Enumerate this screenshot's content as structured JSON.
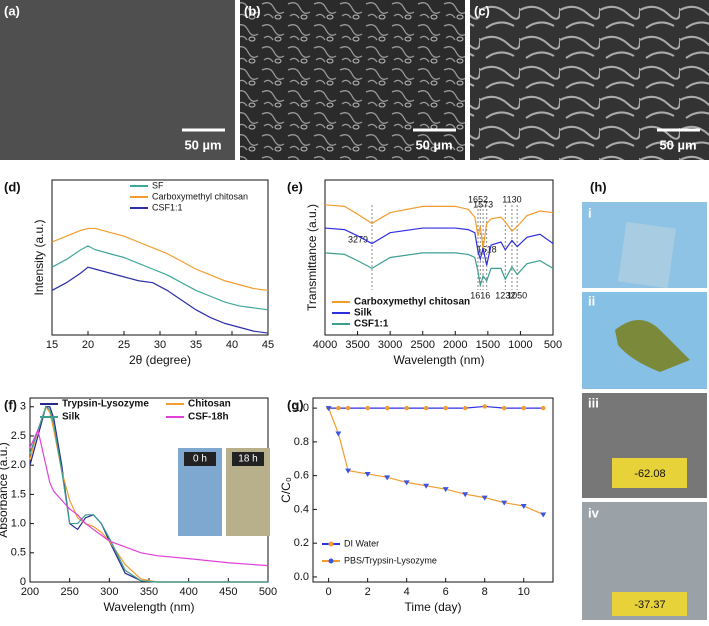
{
  "images": [
    {
      "panel": "(a)",
      "scale": "50 µm"
    },
    {
      "panel": "(b)",
      "scale": "50 µm"
    },
    {
      "panel": "(c)",
      "scale": "50 µm"
    }
  ],
  "photos": {
    "panel": "(h)",
    "items": [
      {
        "label": "i"
      },
      {
        "label": "ii"
      },
      {
        "label": "iii",
        "reading": "-62.08"
      },
      {
        "label": "iv",
        "reading": "-37.37"
      }
    ]
  },
  "chart_data": [
    {
      "type": "line",
      "panel": "(d)",
      "x_label": "2θ (degree)",
      "y_label": "Intensity (a.u.)",
      "xlim": [
        15,
        45
      ],
      "xticks": [
        15,
        20,
        25,
        30,
        35,
        40,
        45
      ],
      "ylim": [
        0,
        8
      ],
      "x": [
        15,
        17,
        19,
        20,
        21,
        23,
        25,
        27,
        29,
        31,
        33,
        35,
        37,
        39,
        41,
        43,
        45
      ],
      "series": [
        {
          "name": "SF",
          "color": "#3fa89a",
          "values": [
            3.5,
            3.9,
            4.4,
            4.6,
            4.4,
            4.2,
            4.0,
            3.7,
            3.4,
            3.1,
            2.7,
            2.3,
            2.0,
            1.7,
            1.5,
            1.4,
            1.3
          ]
        },
        {
          "name": "Carboxymethyl chitosan",
          "color": "#f39c2e",
          "values": [
            4.8,
            5.1,
            5.4,
            5.5,
            5.5,
            5.3,
            5.1,
            4.8,
            4.5,
            4.2,
            3.8,
            3.4,
            3.1,
            2.8,
            2.6,
            2.4,
            2.3
          ]
        },
        {
          "name": "CSF1:1",
          "color": "#2c2fa8",
          "values": [
            2.3,
            2.7,
            3.2,
            3.5,
            3.4,
            3.2,
            3.0,
            2.8,
            2.7,
            2.3,
            1.8,
            1.3,
            0.9,
            0.6,
            0.4,
            0.2,
            0.1
          ]
        }
      ]
    },
    {
      "type": "line",
      "panel": "(e)",
      "x_label": "Wavelength (nm)",
      "y_label": "Transmittance (a.u.)",
      "xlim": [
        4000,
        500
      ],
      "xticks": [
        4000,
        3500,
        3000,
        2500,
        2000,
        1500,
        1000,
        500
      ],
      "ylim": [
        0,
        10
      ],
      "x": [
        4000,
        3700,
        3500,
        3279,
        3000,
        2500,
        2000,
        1800,
        1700,
        1652,
        1616,
        1573,
        1518,
        1450,
        1300,
        1232,
        1130,
        1050,
        900,
        700,
        500
      ],
      "series": [
        {
          "name": "Carboxymethyl chitosan",
          "color": "#f39c2e",
          "values": [
            8.4,
            8.3,
            7.8,
            7.2,
            7.9,
            8.3,
            8.3,
            8.1,
            7.6,
            6.4,
            7.0,
            5.6,
            7.2,
            7.5,
            7.6,
            7.3,
            6.7,
            7.0,
            7.7,
            8.0,
            7.9
          ]
        },
        {
          "name": "Silk",
          "color": "#2f2fe0",
          "values": [
            6.9,
            6.8,
            6.4,
            5.9,
            6.6,
            6.9,
            6.9,
            6.8,
            6.6,
            5.4,
            4.9,
            5.6,
            4.5,
            5.8,
            6.0,
            5.5,
            6.1,
            5.7,
            6.3,
            6.5,
            5.9
          ]
        },
        {
          "name": "CSF1:1",
          "color": "#3a9f90",
          "values": [
            5.3,
            5.2,
            4.8,
            4.3,
            5.0,
            5.3,
            5.3,
            5.2,
            5.0,
            4.1,
            3.2,
            3.8,
            3.5,
            4.3,
            4.3,
            3.6,
            4.4,
            3.9,
            4.6,
            4.8,
            4.3
          ]
        }
      ],
      "annotations": [
        3279,
        1652,
        1573,
        1130,
        1518,
        1616,
        1232,
        1050
      ]
    },
    {
      "type": "line",
      "panel": "(f)",
      "x_label": "Wavelength (nm)",
      "y_label": "Absorbance (a.u.)",
      "xlim": [
        200,
        500
      ],
      "xticks": [
        200,
        250,
        300,
        350,
        400,
        450,
        500
      ],
      "ylim": [
        0,
        3.15
      ],
      "yticks": [
        0,
        0.5,
        {
          "value": 1.0,
          "label": "1.0"
        },
        1.5,
        {
          "value": 2.0,
          "label": "2.0"
        },
        2.5,
        3
      ],
      "x": [
        200,
        210,
        220,
        225,
        230,
        240,
        250,
        260,
        270,
        280,
        290,
        300,
        320,
        340,
        360,
        400,
        450,
        500
      ],
      "series": [
        {
          "name": "Trypsin-Lysozyme",
          "color": "#25288f",
          "values": [
            2.0,
            2.5,
            3.0,
            3.0,
            2.8,
            2.0,
            1.0,
            0.9,
            1.1,
            1.15,
            1.0,
            0.7,
            0.15,
            0.02,
            0,
            0,
            0,
            0
          ]
        },
        {
          "name": "Chitosan",
          "color": "#f39c2e",
          "values": [
            2.1,
            2.6,
            3.0,
            2.9,
            2.6,
            1.9,
            1.4,
            1.1,
            1.0,
            0.95,
            0.85,
            0.7,
            0.3,
            0.05,
            0,
            0,
            0,
            0
          ]
        },
        {
          "name": "Silk",
          "color": "#3a9f90",
          "values": [
            2.2,
            2.6,
            3.0,
            2.95,
            2.7,
            1.9,
            1.0,
            1.0,
            1.15,
            1.15,
            1.0,
            0.75,
            0.2,
            0.02,
            0,
            0,
            0,
            0
          ]
        },
        {
          "name": "CSF-18h",
          "color": "#e040d8",
          "values": [
            2.3,
            2.6,
            2.0,
            1.7,
            1.55,
            1.4,
            1.25,
            1.15,
            1.0,
            0.9,
            0.8,
            0.7,
            0.6,
            0.5,
            0.45,
            0.4,
            0.33,
            0.28
          ]
        }
      ],
      "inset_labels": [
        "0 h",
        "18 h"
      ]
    },
    {
      "type": "line",
      "panel": "(g)",
      "x_label": "Time (day)",
      "y_label": "C/C₀",
      "xlim": [
        -0.8,
        11.5
      ],
      "xticks": [
        0,
        2,
        4,
        6,
        8,
        10
      ],
      "ylim": [
        -0.03,
        1.06
      ],
      "yticks": [
        {
          "value": 0.0,
          "label": "0.0"
        },
        0.2,
        0.4,
        0.6,
        0.8,
        {
          "value": 1.0,
          "label": "1.0"
        }
      ],
      "x": [
        0,
        0.5,
        1,
        2,
        3,
        4,
        5,
        6,
        7,
        8,
        9,
        10,
        11
      ],
      "series": [
        {
          "name": "DI Water",
          "color": "#2f2fe0",
          "marker": "circle",
          "marker_color": "#f39c2e",
          "values": [
            1.0,
            1.0,
            1.0,
            1.0,
            1.0,
            1.0,
            1.0,
            1.0,
            1.0,
            1.01,
            1.0,
            1.0,
            1.0
          ]
        },
        {
          "name": "PBS/Trypsin-Lysozyme",
          "color": "#f39c2e",
          "marker": "triangle",
          "marker_color": "#3a55e0",
          "values": [
            1.0,
            0.85,
            0.63,
            0.61,
            0.59,
            0.56,
            0.54,
            0.52,
            0.49,
            0.47,
            0.44,
            0.42,
            0.37
          ]
        }
      ]
    }
  ]
}
